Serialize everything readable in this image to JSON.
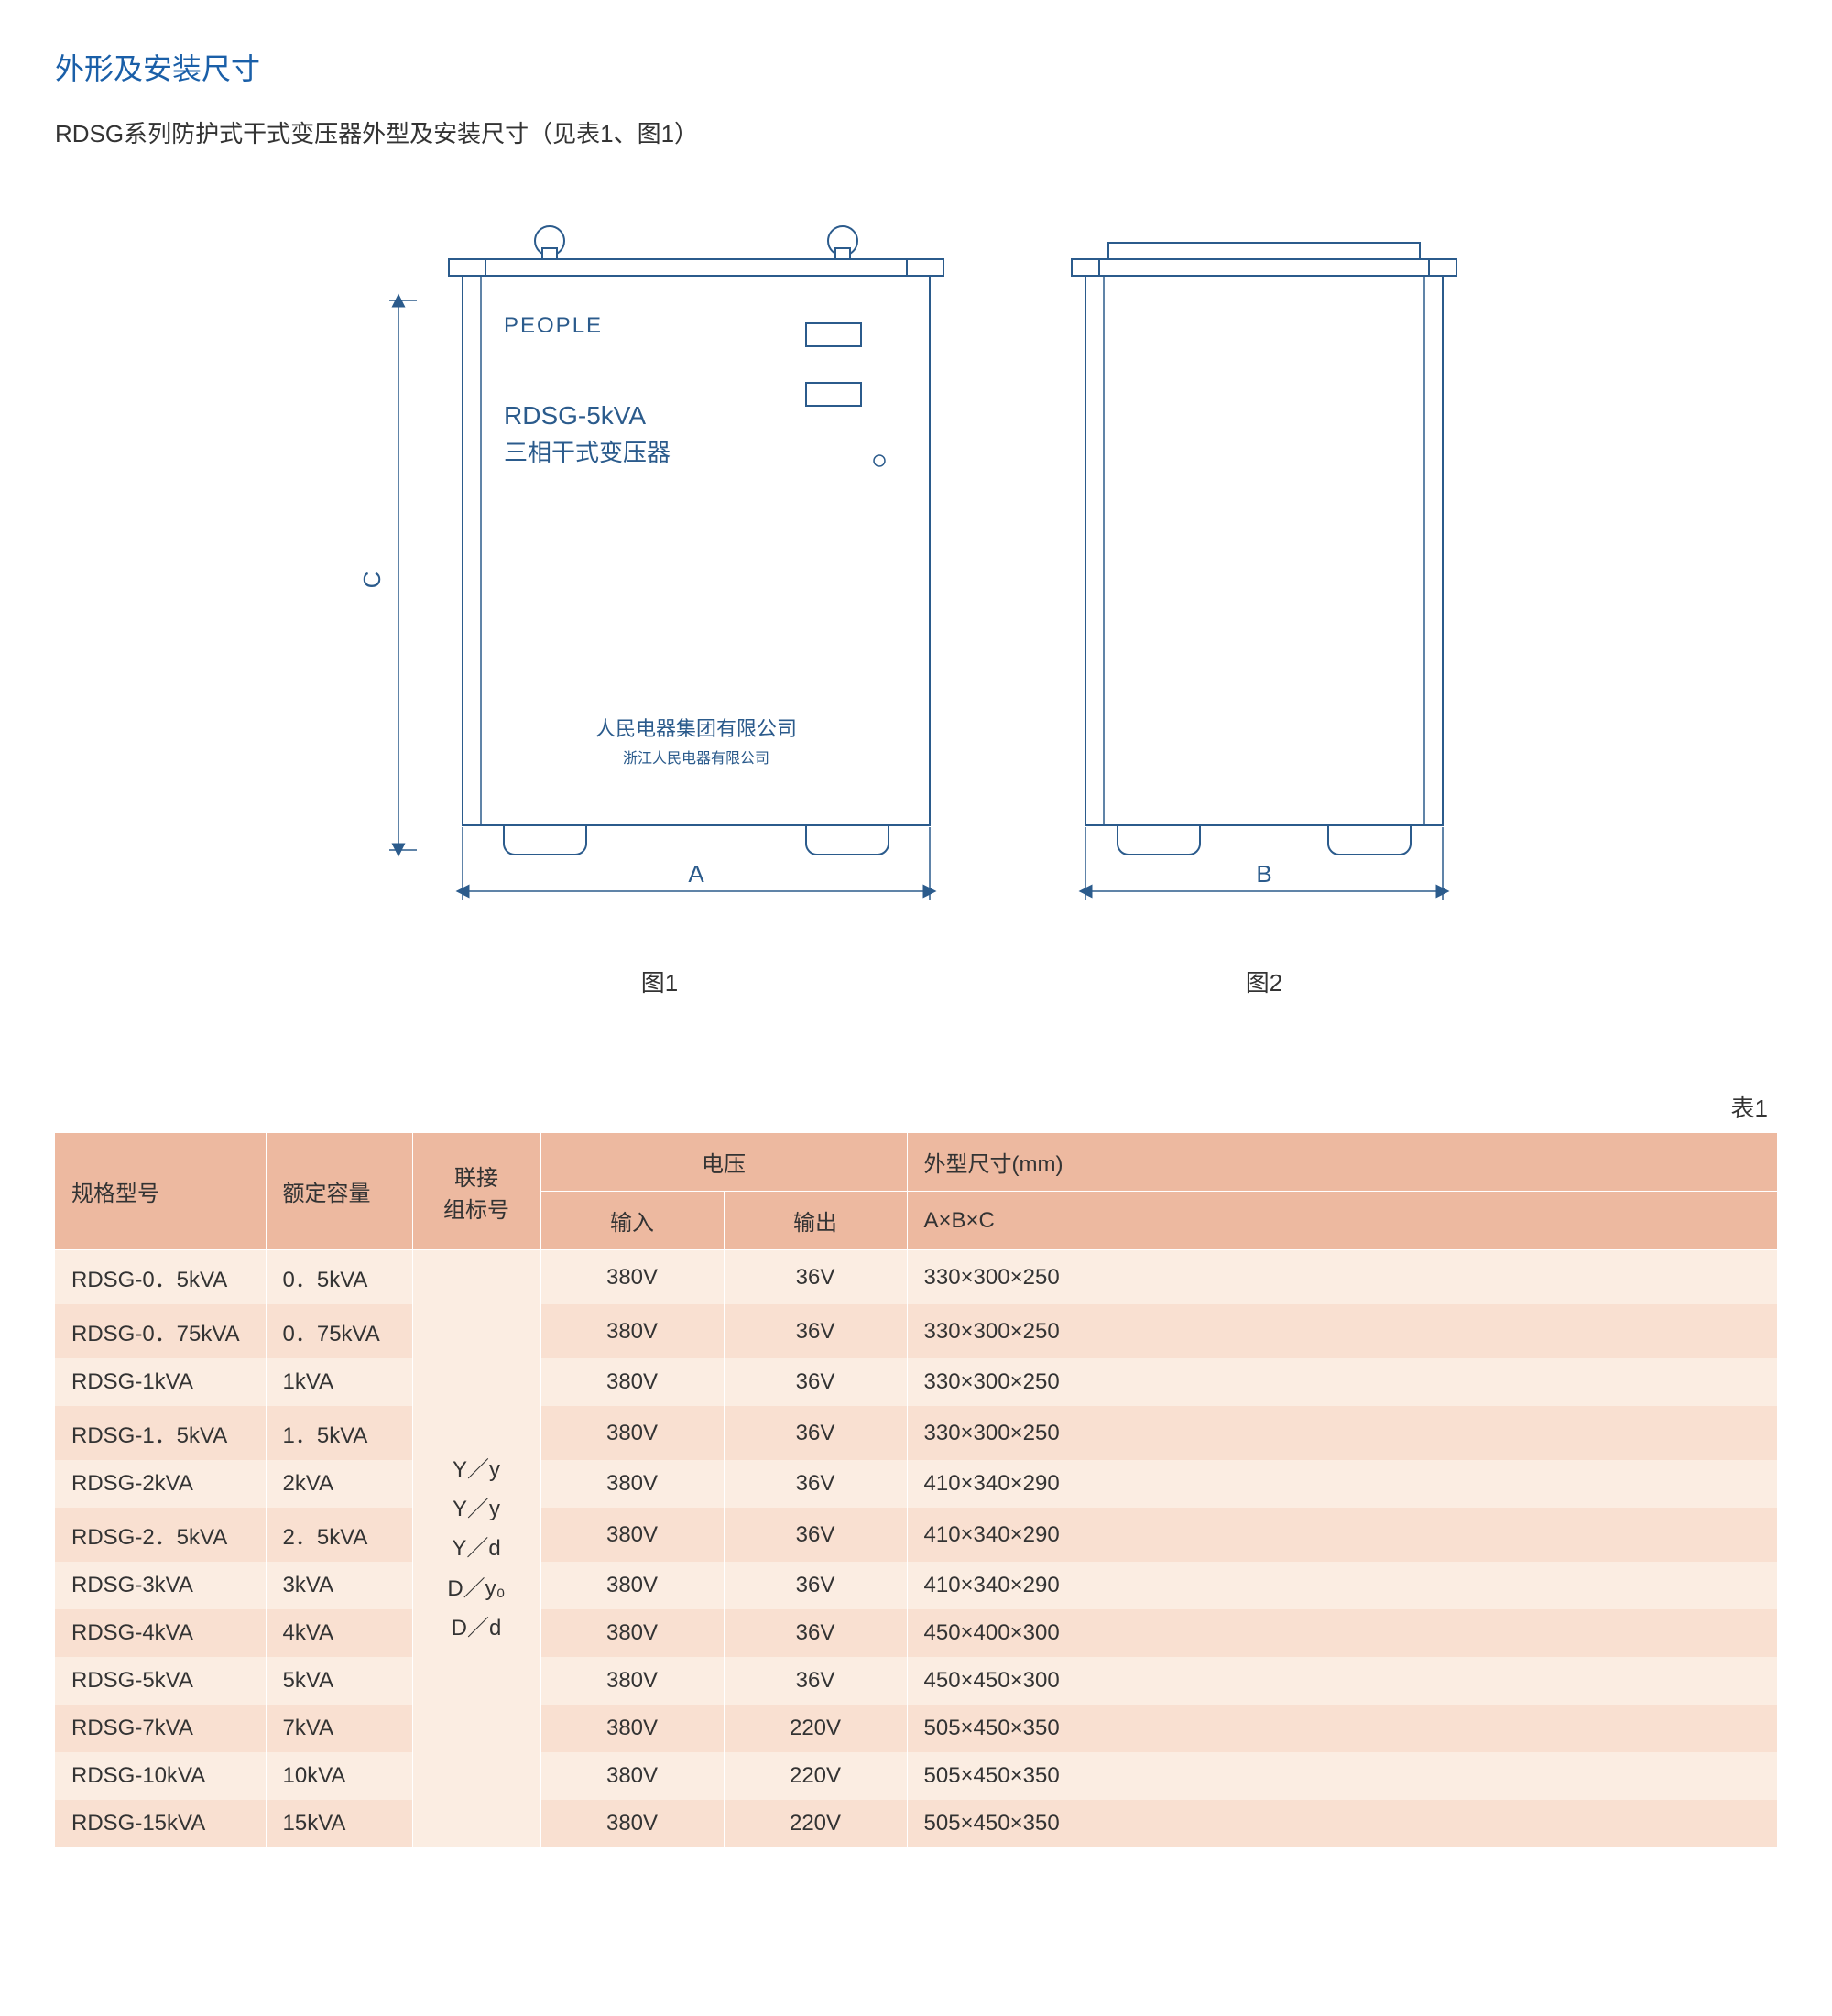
{
  "title": "外形及安装尺寸",
  "subtitle": "RDSG系列防护式干式变压器外型及安装尺寸（见表1、图1）",
  "diagram1": {
    "brand": "PEOPLE",
    "model": "RDSG-5kVA",
    "type_label": "三相干式变压器",
    "company1": "人民电器集团有限公司",
    "company2": "浙江人民电器有限公司",
    "dim_a": "A",
    "dim_c": "C",
    "caption": "图1"
  },
  "diagram2": {
    "dim_b": "B",
    "caption": "图2"
  },
  "colors": {
    "title": "#1a5fa8",
    "stroke": "#2b5b8c",
    "header_bg": "#edb9a0",
    "row_odd": "#fbede2",
    "row_even": "#f9e0d1"
  },
  "table": {
    "caption": "表1",
    "headers": {
      "model": "规格型号",
      "capacity": "额定容量",
      "connection": "联接\n组标号",
      "voltage": "电压",
      "voltage_in": "输入",
      "voltage_out": "输出",
      "dimensions": "外型尺寸(mm)",
      "dimensions_sub": "A×B×C"
    },
    "connection_values": [
      "Y／y",
      "Y／y",
      "Y／d",
      "D／y₀",
      "D／d"
    ],
    "rows": [
      {
        "model": "RDSG-0．5kVA",
        "capacity": "0．5kVA",
        "vin": "380V",
        "vout": "36V",
        "dim": "330×300×250"
      },
      {
        "model": "RDSG-0．75kVA",
        "capacity": "0．75kVA",
        "vin": "380V",
        "vout": "36V",
        "dim": "330×300×250"
      },
      {
        "model": "RDSG-1kVA",
        "capacity": "1kVA",
        "vin": "380V",
        "vout": "36V",
        "dim": "330×300×250"
      },
      {
        "model": "RDSG-1．5kVA",
        "capacity": "1．5kVA",
        "vin": "380V",
        "vout": "36V",
        "dim": "330×300×250"
      },
      {
        "model": "RDSG-2kVA",
        "capacity": "2kVA",
        "vin": "380V",
        "vout": "36V",
        "dim": "410×340×290"
      },
      {
        "model": "RDSG-2．5kVA",
        "capacity": "2．5kVA",
        "vin": "380V",
        "vout": "36V",
        "dim": "410×340×290"
      },
      {
        "model": "RDSG-3kVA",
        "capacity": "3kVA",
        "vin": "380V",
        "vout": "36V",
        "dim": "410×340×290"
      },
      {
        "model": "RDSG-4kVA",
        "capacity": "4kVA",
        "vin": "380V",
        "vout": "36V",
        "dim": "450×400×300"
      },
      {
        "model": "RDSG-5kVA",
        "capacity": "5kVA",
        "vin": "380V",
        "vout": "36V",
        "dim": "450×450×300"
      },
      {
        "model": "RDSG-7kVA",
        "capacity": "7kVA",
        "vin": "380V",
        "vout": "220V",
        "dim": "505×450×350"
      },
      {
        "model": "RDSG-10kVA",
        "capacity": "10kVA",
        "vin": "380V",
        "vout": "220V",
        "dim": "505×450×350"
      },
      {
        "model": "RDSG-15kVA",
        "capacity": "15kVA",
        "vin": "380V",
        "vout": "220V",
        "dim": "505×450×350"
      }
    ]
  }
}
